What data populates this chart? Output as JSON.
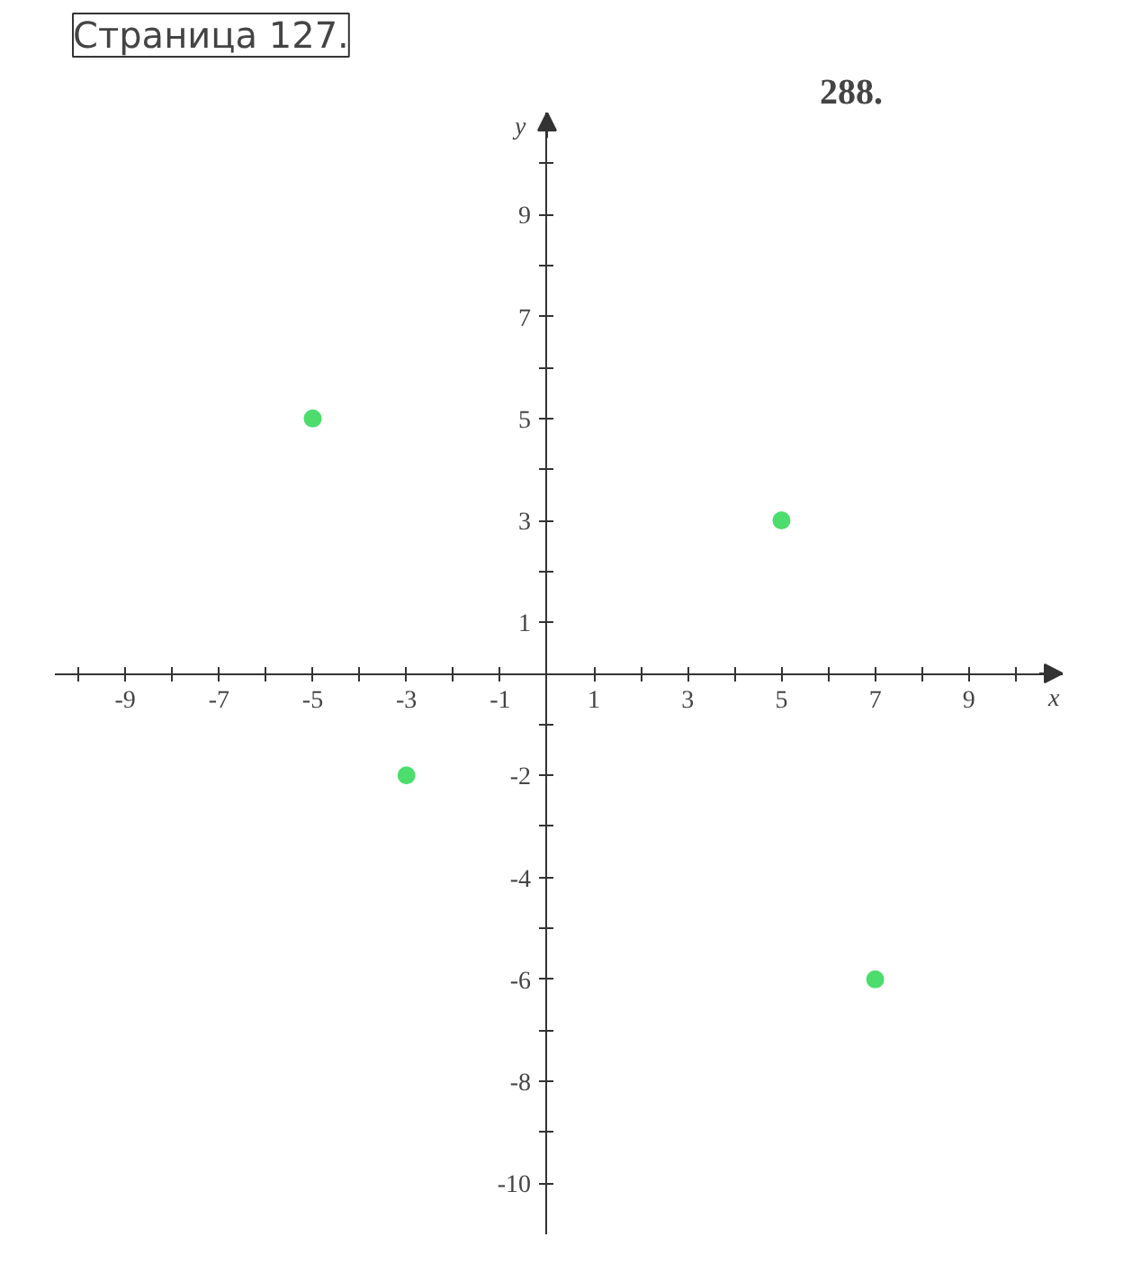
{
  "chart_data": {
    "type": "scatter",
    "title": "288.",
    "annotations": [
      "Страница 127."
    ],
    "xlabel": "x",
    "ylabel": "y",
    "x": [
      -5,
      5,
      -3,
      7
    ],
    "series": [
      {
        "color": "#4cdd6c",
        "values": [
          5,
          3,
          -2,
          -6
        ]
      }
    ],
    "marker": "circle",
    "grid": false,
    "xlim": [
      -10.5,
      11
    ],
    "ylim": [
      -11,
      11
    ],
    "xticks": [
      {
        "value": -10,
        "label": null
      },
      -9,
      {
        "value": -8,
        "label": null
      },
      -7,
      {
        "value": -6,
        "label": null
      },
      -5,
      {
        "value": -4,
        "label": null
      },
      -3,
      {
        "value": -2,
        "label": null
      },
      -1,
      1,
      {
        "value": 2,
        "label": null
      },
      3,
      {
        "value": 4,
        "label": null
      },
      5,
      {
        "value": 6,
        "label": null
      },
      7,
      {
        "value": 8,
        "label": null
      },
      9,
      {
        "value": 10,
        "label": null
      }
    ],
    "yticks": [
      -10,
      {
        "value": -9,
        "label": null
      },
      -8,
      {
        "value": -7,
        "label": null
      },
      -6,
      {
        "value": -5,
        "label": null
      },
      -4,
      {
        "value": -3,
        "label": null
      },
      -2,
      {
        "value": -1,
        "label": null
      },
      1,
      {
        "value": 2,
        "label": null
      },
      3,
      {
        "value": 4,
        "label": null
      },
      5,
      {
        "value": 6,
        "label": null
      },
      7,
      {
        "value": 8,
        "label": null
      },
      9,
      {
        "value": 10,
        "label": null
      }
    ]
  }
}
